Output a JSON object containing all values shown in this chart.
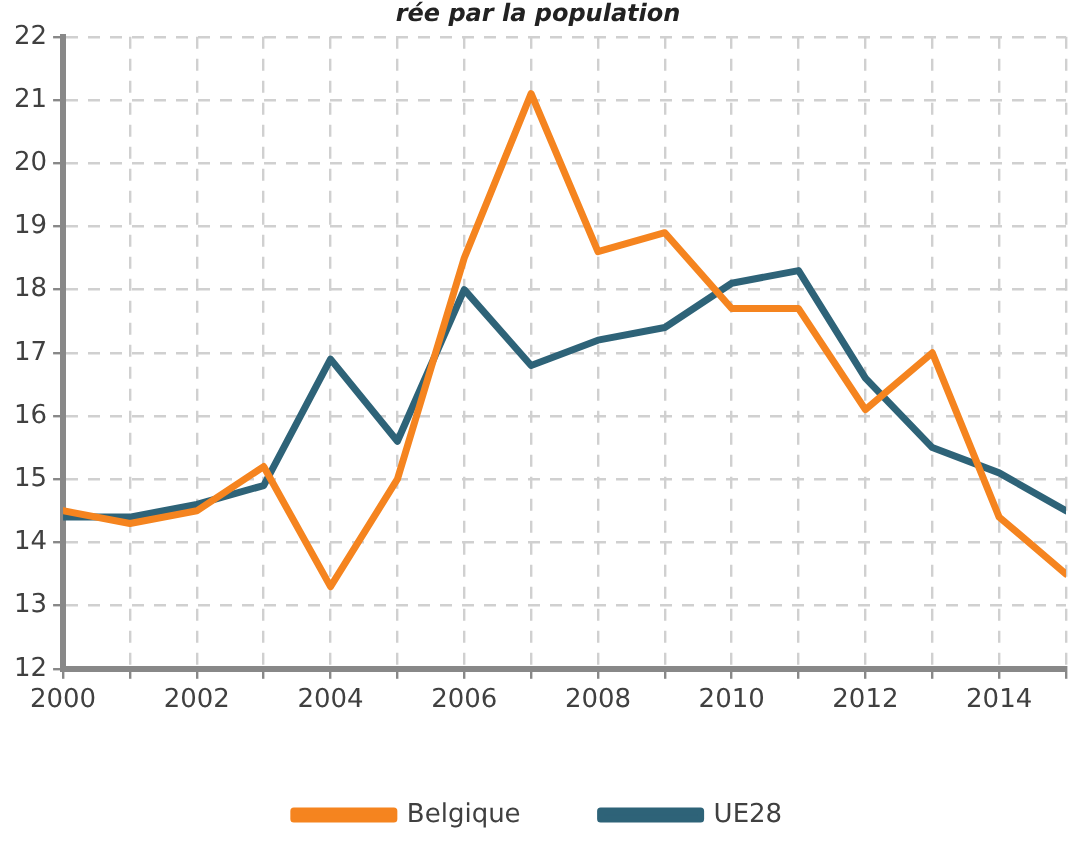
{
  "chart_data": {
    "type": "line",
    "title": "rée par la population",
    "x": [
      2000,
      2001,
      2002,
      2003,
      2004,
      2005,
      2006,
      2007,
      2008,
      2009,
      2010,
      2011,
      2012,
      2013,
      2014,
      2015
    ],
    "series": [
      {
        "name": "Belgique",
        "color": "#f5841f",
        "values": [
          14.5,
          14.3,
          14.5,
          15.2,
          13.3,
          15.0,
          18.5,
          21.1,
          18.6,
          18.9,
          17.7,
          17.7,
          16.1,
          17.0,
          14.4,
          13.5
        ]
      },
      {
        "name": "UE28",
        "color": "#2e6378",
        "values": [
          14.4,
          14.4,
          14.6,
          14.9,
          16.9,
          15.6,
          18.0,
          16.8,
          17.2,
          17.4,
          18.1,
          18.3,
          16.6,
          15.5,
          15.1,
          14.5
        ]
      }
    ],
    "xlim": [
      2000,
      2015
    ],
    "xticks": [
      2000,
      {
        "value": 2001,
        "label": null
      },
      2002,
      {
        "value": 2003,
        "label": null
      },
      2004,
      {
        "value": 2005,
        "label": null
      },
      2006,
      {
        "value": 2007,
        "label": null
      },
      2008,
      {
        "value": 2009,
        "label": null
      },
      2010,
      {
        "value": 2011,
        "label": null
      },
      2012,
      {
        "value": 2013,
        "label": null
      },
      2014,
      {
        "value": 2015,
        "label": null
      }
    ],
    "ylim": [
      12,
      22
    ],
    "yticks": [
      12,
      13,
      14,
      15,
      16,
      17,
      18,
      19,
      20,
      21,
      22
    ],
    "grid": true,
    "legend": "bottom",
    "marker": "none",
    "line_style": "solid"
  }
}
